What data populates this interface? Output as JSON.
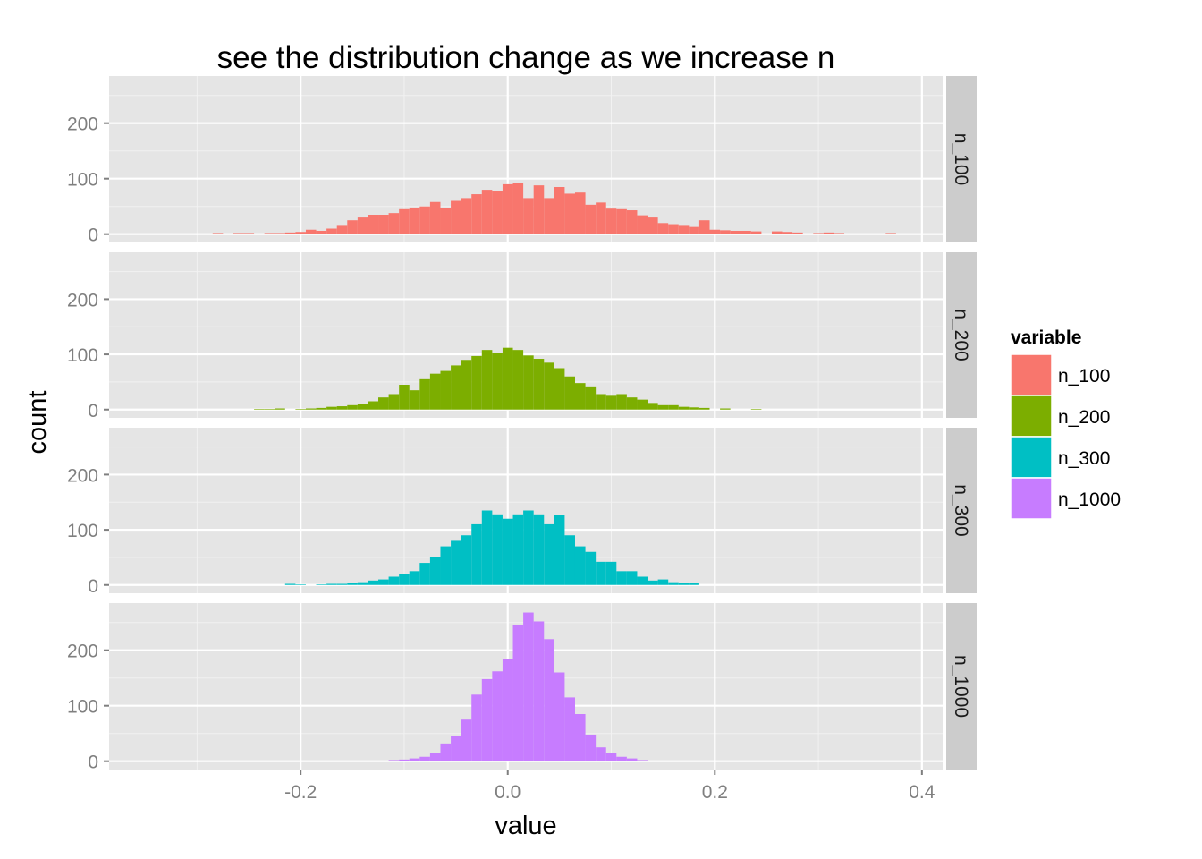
{
  "chart_data": {
    "type": "bar",
    "title": "see the distribution change as we increase n",
    "xlabel": "value",
    "ylabel": "count",
    "xlim": [
      -0.385,
      0.42
    ],
    "ylim": [
      -15,
      285
    ],
    "x_ticks": [
      -0.2,
      0.0,
      0.2,
      0.4
    ],
    "x_tick_labels": [
      "-0.2",
      "0.0",
      "0.2",
      "0.4"
    ],
    "y_ticks": [
      0,
      100,
      200
    ],
    "y_tick_labels": [
      "0",
      "100",
      "200"
    ],
    "grid": true,
    "legend": {
      "title": "variable",
      "position": "right",
      "entries": [
        "n_100",
        "n_200",
        "n_300",
        "n_1000"
      ]
    },
    "bin_width": 0.01,
    "series": [
      {
        "name": "n_100",
        "facet_label": "n_100",
        "color": "#F8766D",
        "bins": [
          [
            -0.34,
            1
          ],
          [
            -0.32,
            1
          ],
          [
            -0.31,
            1
          ],
          [
            -0.3,
            1
          ],
          [
            -0.29,
            1
          ],
          [
            -0.28,
            2
          ],
          [
            -0.27,
            1
          ],
          [
            -0.26,
            2
          ],
          [
            -0.25,
            2
          ],
          [
            -0.24,
            1
          ],
          [
            -0.23,
            2
          ],
          [
            -0.22,
            2
          ],
          [
            -0.21,
            3
          ],
          [
            -0.2,
            4
          ],
          [
            -0.19,
            8
          ],
          [
            -0.18,
            6
          ],
          [
            -0.17,
            10
          ],
          [
            -0.16,
            15
          ],
          [
            -0.15,
            25
          ],
          [
            -0.14,
            30
          ],
          [
            -0.13,
            35
          ],
          [
            -0.12,
            35
          ],
          [
            -0.11,
            38
          ],
          [
            -0.1,
            45
          ],
          [
            -0.09,
            48
          ],
          [
            -0.08,
            50
          ],
          [
            -0.07,
            58
          ],
          [
            -0.06,
            47
          ],
          [
            -0.05,
            60
          ],
          [
            -0.04,
            65
          ],
          [
            -0.03,
            72
          ],
          [
            -0.02,
            80
          ],
          [
            -0.01,
            77
          ],
          [
            0.0,
            90
          ],
          [
            0.01,
            93
          ],
          [
            0.02,
            65
          ],
          [
            0.03,
            88
          ],
          [
            0.04,
            65
          ],
          [
            0.05,
            85
          ],
          [
            0.06,
            73
          ],
          [
            0.07,
            75
          ],
          [
            0.08,
            53
          ],
          [
            0.09,
            57
          ],
          [
            0.1,
            46
          ],
          [
            0.11,
            45
          ],
          [
            0.12,
            43
          ],
          [
            0.13,
            34
          ],
          [
            0.14,
            30
          ],
          [
            0.15,
            20
          ],
          [
            0.16,
            18
          ],
          [
            0.17,
            15
          ],
          [
            0.18,
            13
          ],
          [
            0.19,
            25
          ],
          [
            0.2,
            8
          ],
          [
            0.21,
            7
          ],
          [
            0.22,
            6
          ],
          [
            0.23,
            6
          ],
          [
            0.24,
            5
          ],
          [
            0.26,
            5
          ],
          [
            0.27,
            4
          ],
          [
            0.28,
            3
          ],
          [
            0.3,
            2
          ],
          [
            0.31,
            3
          ],
          [
            0.32,
            2
          ],
          [
            0.34,
            1
          ],
          [
            0.36,
            1
          ],
          [
            0.37,
            2
          ]
        ]
      },
      {
        "name": "n_200",
        "facet_label": "n_200",
        "color": "#7CAE00",
        "bins": [
          [
            -0.24,
            1
          ],
          [
            -0.23,
            1
          ],
          [
            -0.22,
            2
          ],
          [
            -0.2,
            1
          ],
          [
            -0.19,
            2
          ],
          [
            -0.18,
            3
          ],
          [
            -0.17,
            5
          ],
          [
            -0.16,
            6
          ],
          [
            -0.15,
            8
          ],
          [
            -0.14,
            10
          ],
          [
            -0.13,
            15
          ],
          [
            -0.12,
            22
          ],
          [
            -0.11,
            28
          ],
          [
            -0.1,
            45
          ],
          [
            -0.09,
            35
          ],
          [
            -0.08,
            55
          ],
          [
            -0.07,
            65
          ],
          [
            -0.06,
            70
          ],
          [
            -0.05,
            80
          ],
          [
            -0.04,
            90
          ],
          [
            -0.03,
            97
          ],
          [
            -0.02,
            108
          ],
          [
            -0.01,
            102
          ],
          [
            0.0,
            112
          ],
          [
            0.01,
            108
          ],
          [
            0.02,
            98
          ],
          [
            0.03,
            92
          ],
          [
            0.04,
            85
          ],
          [
            0.05,
            75
          ],
          [
            0.06,
            60
          ],
          [
            0.07,
            48
          ],
          [
            0.08,
            42
          ],
          [
            0.09,
            28
          ],
          [
            0.1,
            25
          ],
          [
            0.11,
            28
          ],
          [
            0.12,
            22
          ],
          [
            0.13,
            18
          ],
          [
            0.14,
            12
          ],
          [
            0.15,
            8
          ],
          [
            0.16,
            8
          ],
          [
            0.17,
            5
          ],
          [
            0.18,
            4
          ],
          [
            0.19,
            3
          ],
          [
            0.21,
            2
          ],
          [
            0.24,
            1
          ]
        ]
      },
      {
        "name": "n_300",
        "facet_label": "n_300",
        "color": "#00BFC4",
        "bins": [
          [
            -0.21,
            2
          ],
          [
            -0.2,
            1
          ],
          [
            -0.18,
            1
          ],
          [
            -0.17,
            2
          ],
          [
            -0.16,
            2
          ],
          [
            -0.15,
            3
          ],
          [
            -0.14,
            5
          ],
          [
            -0.13,
            8
          ],
          [
            -0.12,
            10
          ],
          [
            -0.11,
            15
          ],
          [
            -0.1,
            20
          ],
          [
            -0.09,
            25
          ],
          [
            -0.08,
            40
          ],
          [
            -0.07,
            50
          ],
          [
            -0.06,
            70
          ],
          [
            -0.05,
            80
          ],
          [
            -0.04,
            90
          ],
          [
            -0.03,
            110
          ],
          [
            -0.02,
            135
          ],
          [
            -0.01,
            128
          ],
          [
            0.0,
            120
          ],
          [
            0.01,
            128
          ],
          [
            0.02,
            135
          ],
          [
            0.03,
            128
          ],
          [
            0.04,
            110
          ],
          [
            0.05,
            127
          ],
          [
            0.06,
            90
          ],
          [
            0.07,
            70
          ],
          [
            0.08,
            60
          ],
          [
            0.09,
            42
          ],
          [
            0.1,
            42
          ],
          [
            0.11,
            25
          ],
          [
            0.12,
            25
          ],
          [
            0.13,
            15
          ],
          [
            0.14,
            8
          ],
          [
            0.15,
            10
          ],
          [
            0.16,
            5
          ],
          [
            0.17,
            3
          ],
          [
            0.18,
            3
          ]
        ]
      },
      {
        "name": "n_1000",
        "facet_label": "n_1000",
        "color": "#C77CFF",
        "bins": [
          [
            -0.11,
            2
          ],
          [
            -0.1,
            3
          ],
          [
            -0.09,
            5
          ],
          [
            -0.08,
            8
          ],
          [
            -0.07,
            15
          ],
          [
            -0.06,
            32
          ],
          [
            -0.05,
            45
          ],
          [
            -0.04,
            75
          ],
          [
            -0.03,
            120
          ],
          [
            -0.02,
            148
          ],
          [
            -0.01,
            162
          ],
          [
            0.0,
            185
          ],
          [
            0.01,
            245
          ],
          [
            0.02,
            268
          ],
          [
            0.03,
            252
          ],
          [
            0.04,
            220
          ],
          [
            0.05,
            160
          ],
          [
            0.06,
            115
          ],
          [
            0.07,
            85
          ],
          [
            0.08,
            48
          ],
          [
            0.09,
            25
          ],
          [
            0.1,
            15
          ],
          [
            0.11,
            8
          ],
          [
            0.12,
            5
          ],
          [
            0.13,
            2
          ],
          [
            0.14,
            1
          ]
        ]
      }
    ]
  }
}
